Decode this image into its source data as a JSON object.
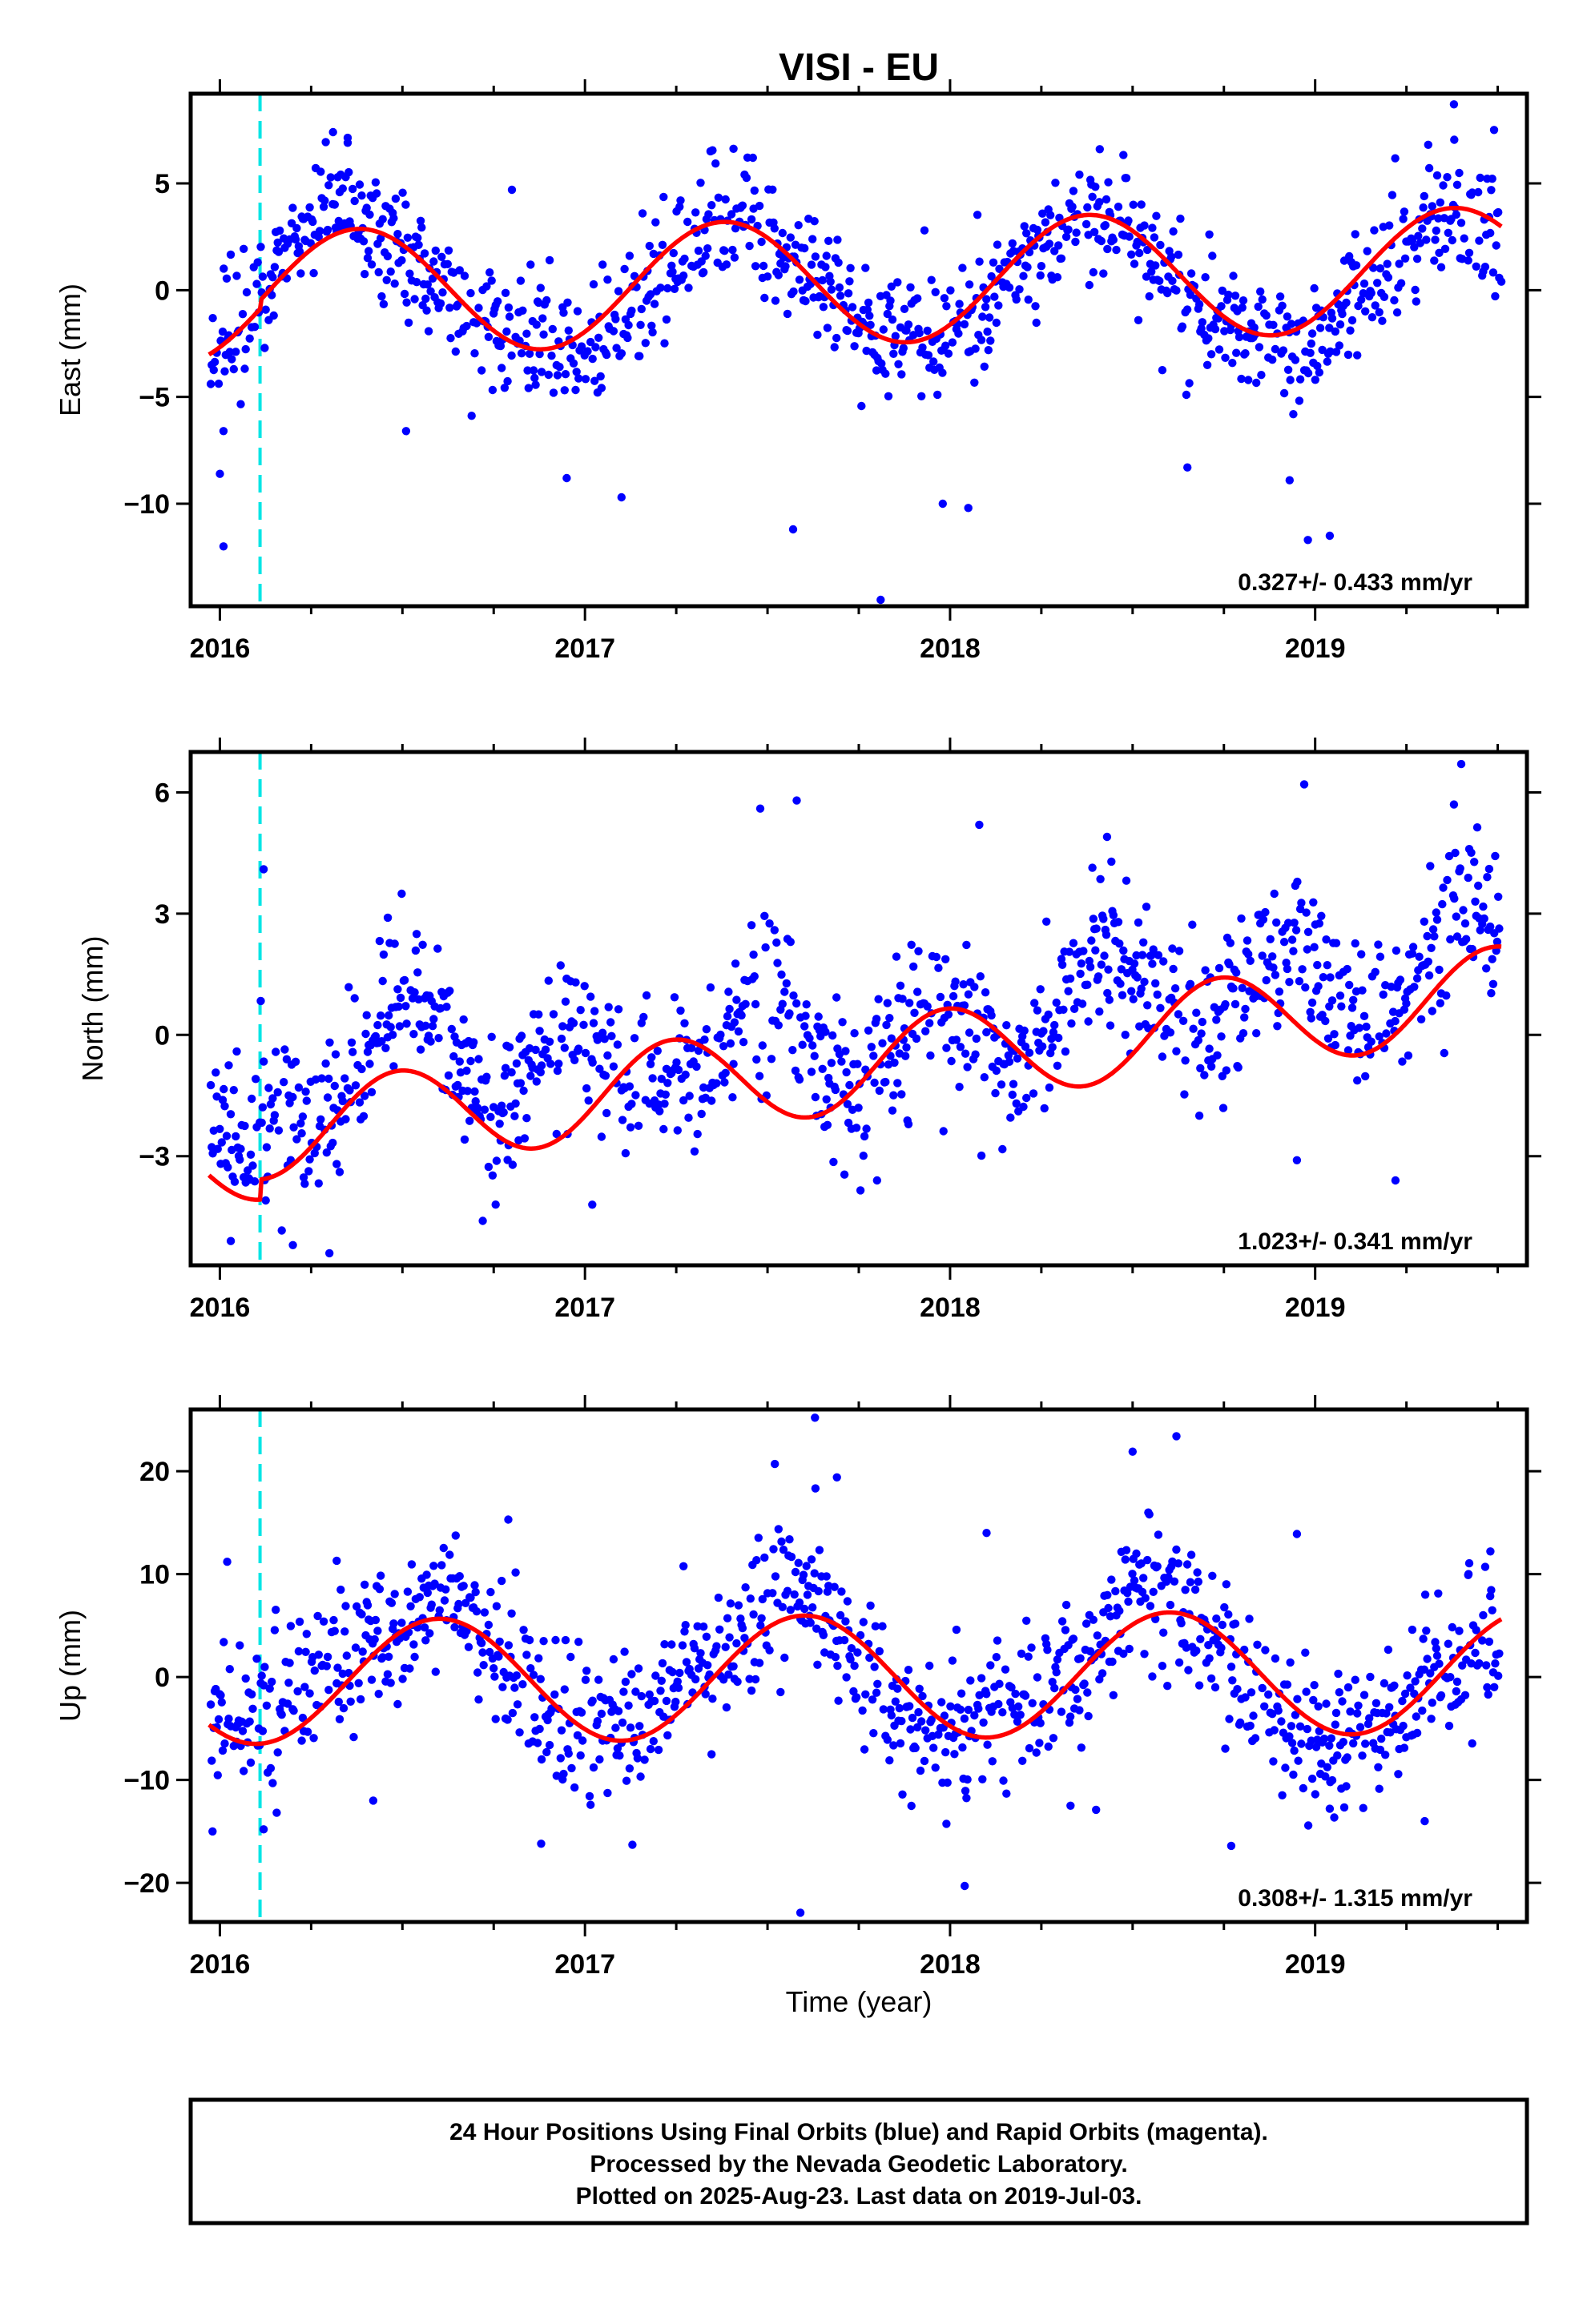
{
  "title": "VISI - EU",
  "xlabel": "Time (year)",
  "footer": {
    "line1": "24 Hour Positions Using Final Orbits (blue) and Rapid Orbits (magenta).",
    "line2": "Processed by the Nevada Geodetic Laboratory.",
    "line3": "Plotted on 2025-Aug-23. Last data on 2019-Jul-03."
  },
  "colors": {
    "points": "#0000ff",
    "fit": "#ff0000",
    "event_line": "#00e5e5",
    "frame": "#000000"
  },
  "chart_data": [
    {
      "type": "scatter",
      "ylabel": "East (mm)",
      "rate_text": "0.327+/- 0.433 mm/yr",
      "xlim": [
        2015.92,
        2019.58
      ],
      "ylim": [
        -14.8,
        9.2
      ],
      "yticks": [
        -10,
        -5,
        0,
        5
      ],
      "xticks": [
        2016,
        2017,
        2018,
        2019
      ],
      "grid": false,
      "event_line_x": 2016.11,
      "fit": {
        "offset": 0.0,
        "rate": 0.327,
        "amplitude": 2.9,
        "period": 1.0,
        "peak": 2016.38,
        "step": [
          2016.11,
          0.4
        ]
      },
      "series": [
        {
          "kind": "daily",
          "samples": [
            {
              "x": 2015.97,
              "y": -3.2
            },
            {
              "x": 2016.05,
              "y": -1.0
            },
            {
              "x": 2016.15,
              "y": 0.5
            },
            {
              "x": 2016.25,
              "y": 2.9
            },
            {
              "x": 2016.35,
              "y": 3.6
            },
            {
              "x": 2016.45,
              "y": 2.5
            },
            {
              "x": 2016.55,
              "y": 1.2
            },
            {
              "x": 2016.65,
              "y": -0.5
            },
            {
              "x": 2016.75,
              "y": -1.8
            },
            {
              "x": 2016.85,
              "y": -2.4
            },
            {
              "x": 2016.95,
              "y": -3.3
            },
            {
              "x": 2017.05,
              "y": -2.5
            },
            {
              "x": 2017.15,
              "y": -0.7
            },
            {
              "x": 2017.35,
              "y": 3.2
            },
            {
              "x": 2017.45,
              "y": 3.9
            },
            {
              "x": 2017.55,
              "y": 1.8
            },
            {
              "x": 2017.65,
              "y": 0.2
            },
            {
              "x": 2017.75,
              "y": -1.5
            },
            {
              "x": 2017.85,
              "y": -2.4
            },
            {
              "x": 2017.95,
              "y": -2.9
            },
            {
              "x": 2018.05,
              "y": -1.5
            },
            {
              "x": 2018.15,
              "y": 0.3
            },
            {
              "x": 2018.25,
              "y": 2.2
            },
            {
              "x": 2018.35,
              "y": 3.4
            },
            {
              "x": 2018.45,
              "y": 3.2
            },
            {
              "x": 2018.55,
              "y": 1.6
            },
            {
              "x": 2018.65,
              "y": -0.4
            },
            {
              "x": 2018.75,
              "y": -1.4
            },
            {
              "x": 2018.85,
              "y": -2.2
            },
            {
              "x": 2018.95,
              "y": -2.6
            },
            {
              "x": 2019.05,
              "y": -1.4
            },
            {
              "x": 2019.15,
              "y": 0.4
            },
            {
              "x": 2019.25,
              "y": 2.3
            },
            {
              "x": 2019.35,
              "y": 3.4
            },
            {
              "x": 2019.45,
              "y": 3.1
            },
            {
              "x": 2019.5,
              "y": 2.0
            }
          ],
          "outliers": [
            {
              "x": 2016.01,
              "y": -12.0
            },
            {
              "x": 2016.0,
              "y": -8.6
            },
            {
              "x": 2016.01,
              "y": -6.6
            },
            {
              "x": 2016.31,
              "y": 7.4
            },
            {
              "x": 2016.35,
              "y": 6.9
            },
            {
              "x": 2016.51,
              "y": -6.6
            },
            {
              "x": 2016.8,
              "y": 4.7
            },
            {
              "x": 2016.95,
              "y": -8.8
            },
            {
              "x": 2017.1,
              "y": -9.7
            },
            {
              "x": 2017.46,
              "y": 6.2
            },
            {
              "x": 2017.57,
              "y": -11.2
            },
            {
              "x": 2017.81,
              "y": -14.5
            },
            {
              "x": 2017.93,
              "y": 2.8
            },
            {
              "x": 2017.98,
              "y": -10.0
            },
            {
              "x": 2018.05,
              "y": -10.2
            },
            {
              "x": 2018.41,
              "y": 6.6
            },
            {
              "x": 2018.65,
              "y": -8.3
            },
            {
              "x": 2018.93,
              "y": -8.9
            },
            {
              "x": 2018.98,
              "y": -11.7
            },
            {
              "x": 2019.04,
              "y": -11.5
            },
            {
              "x": 2019.38,
              "y": 8.7
            },
            {
              "x": 2019.49,
              "y": 7.5
            },
            {
              "x": 2019.51,
              "y": 0.4
            }
          ]
        }
      ]
    },
    {
      "type": "scatter",
      "ylabel": "North (mm)",
      "rate_text": "1.023+/- 0.341 mm/yr",
      "xlim": [
        2015.92,
        2019.58
      ],
      "ylim": [
        -5.7,
        7.0
      ],
      "yticks": [
        -3,
        0,
        3,
        6
      ],
      "xticks": [
        2016,
        2017,
        2018,
        2019
      ],
      "grid": false,
      "event_line_x": 2016.11,
      "fit": {
        "offset": -1.3,
        "rate": 1.023,
        "amplitude": 1.15,
        "period": 0.75,
        "peak": 2016.49,
        "step": [
          2016.11,
          0.5
        ]
      },
      "series": [
        {
          "kind": "daily",
          "samples": [
            {
              "x": 2015.97,
              "y": -1.8
            },
            {
              "x": 2016.05,
              "y": -2.4
            },
            {
              "x": 2016.15,
              "y": -2.3
            },
            {
              "x": 2016.25,
              "y": -2.7
            },
            {
              "x": 2016.35,
              "y": -1.2
            },
            {
              "x": 2016.45,
              "y": 0.4
            },
            {
              "x": 2016.55,
              "y": 0.7
            },
            {
              "x": 2016.65,
              "y": -0.6
            },
            {
              "x": 2016.75,
              "y": -2.2
            },
            {
              "x": 2016.85,
              "y": -1.2
            },
            {
              "x": 2016.95,
              "y": 0.2
            },
            {
              "x": 2017.05,
              "y": -0.6
            },
            {
              "x": 2017.15,
              "y": -1.2
            },
            {
              "x": 2017.35,
              "y": -0.6
            },
            {
              "x": 2017.45,
              "y": 1.3
            },
            {
              "x": 2017.55,
              "y": 0.8
            },
            {
              "x": 2017.65,
              "y": -0.7
            },
            {
              "x": 2017.75,
              "y": -1.5
            },
            {
              "x": 2017.85,
              "y": -0.2
            },
            {
              "x": 2017.95,
              "y": 1.1
            },
            {
              "x": 2018.05,
              "y": 0.6
            },
            {
              "x": 2018.15,
              "y": -0.8
            },
            {
              "x": 2018.25,
              "y": -0.1
            },
            {
              "x": 2018.35,
              "y": 1.5
            },
            {
              "x": 2018.45,
              "y": 2.4
            },
            {
              "x": 2018.55,
              "y": 1.3
            },
            {
              "x": 2018.65,
              "y": -0.1
            },
            {
              "x": 2018.75,
              "y": 0.3
            },
            {
              "x": 2018.85,
              "y": 1.6
            },
            {
              "x": 2018.95,
              "y": 2.5
            },
            {
              "x": 2019.05,
              "y": 1.3
            },
            {
              "x": 2019.15,
              "y": 0.2
            },
            {
              "x": 2019.25,
              "y": 0.9
            },
            {
              "x": 2019.35,
              "y": 2.5
            },
            {
              "x": 2019.45,
              "y": 3.3
            },
            {
              "x": 2019.5,
              "y": 2.8
            }
          ],
          "outliers": [
            {
              "x": 2016.03,
              "y": -5.1
            },
            {
              "x": 2016.12,
              "y": 4.1
            },
            {
              "x": 2016.2,
              "y": -5.2
            },
            {
              "x": 2016.3,
              "y": -5.4
            },
            {
              "x": 2016.46,
              "y": 2.9
            },
            {
              "x": 2016.72,
              "y": -4.6
            },
            {
              "x": 2017.02,
              "y": -4.2
            },
            {
              "x": 2017.48,
              "y": 5.6
            },
            {
              "x": 2017.58,
              "y": 5.8
            },
            {
              "x": 2017.8,
              "y": -3.6
            },
            {
              "x": 2018.08,
              "y": 5.2
            },
            {
              "x": 2018.43,
              "y": 4.9
            },
            {
              "x": 2018.97,
              "y": 6.2
            },
            {
              "x": 2018.95,
              "y": -3.1
            },
            {
              "x": 2019.22,
              "y": -3.6
            },
            {
              "x": 2019.4,
              "y": 6.7
            },
            {
              "x": 2019.38,
              "y": 5.7
            }
          ]
        }
      ]
    },
    {
      "type": "scatter",
      "ylabel": "Up (mm)",
      "rate_text": "0.308+/- 1.315 mm/yr",
      "xlim": [
        2015.92,
        2019.58
      ],
      "ylim": [
        -23.8,
        26.0
      ],
      "yticks": [
        -20,
        -10,
        0,
        10,
        20
      ],
      "xticks": [
        2016,
        2017,
        2018,
        2019
      ],
      "grid": false,
      "event_line_x": 2016.11,
      "fit": {
        "offset": 0.0,
        "rate": 0.308,
        "amplitude": 6.0,
        "period": 1.0,
        "peak": 2016.6,
        "step": null
      },
      "series": [
        {
          "kind": "daily",
          "samples": [
            {
              "x": 2015.97,
              "y": -4.5
            },
            {
              "x": 2016.05,
              "y": -3.5
            },
            {
              "x": 2016.15,
              "y": -4.0
            },
            {
              "x": 2016.25,
              "y": -2.0
            },
            {
              "x": 2016.35,
              "y": 1.5
            },
            {
              "x": 2016.45,
              "y": 4.0
            },
            {
              "x": 2016.55,
              "y": 8.0
            },
            {
              "x": 2016.65,
              "y": 7.0
            },
            {
              "x": 2016.75,
              "y": 3.0
            },
            {
              "x": 2016.85,
              "y": -2.0
            },
            {
              "x": 2016.95,
              "y": -5.5
            },
            {
              "x": 2017.05,
              "y": -5.0
            },
            {
              "x": 2017.15,
              "y": -3.5
            },
            {
              "x": 2017.35,
              "y": 1.5
            },
            {
              "x": 2017.45,
              "y": 5.0
            },
            {
              "x": 2017.55,
              "y": 9.5
            },
            {
              "x": 2017.65,
              "y": 8.0
            },
            {
              "x": 2017.75,
              "y": 2.0
            },
            {
              "x": 2017.85,
              "y": -3.0
            },
            {
              "x": 2017.95,
              "y": -5.5
            },
            {
              "x": 2018.05,
              "y": -5.0
            },
            {
              "x": 2018.15,
              "y": -4.0
            },
            {
              "x": 2018.25,
              "y": -2.0
            },
            {
              "x": 2018.35,
              "y": 1.0
            },
            {
              "x": 2018.45,
              "y": 5.0
            },
            {
              "x": 2018.55,
              "y": 9.5
            },
            {
              "x": 2018.65,
              "y": 7.0
            },
            {
              "x": 2018.75,
              "y": 2.0
            },
            {
              "x": 2018.85,
              "y": -3.0
            },
            {
              "x": 2018.95,
              "y": -5.0
            },
            {
              "x": 2019.05,
              "y": -6.5
            },
            {
              "x": 2019.15,
              "y": -6.0
            },
            {
              "x": 2019.25,
              "y": -3.0
            },
            {
              "x": 2019.35,
              "y": 0.5
            },
            {
              "x": 2019.45,
              "y": 4.5
            },
            {
              "x": 2019.5,
              "y": 5.5
            }
          ],
          "outliers": [
            {
              "x": 2015.98,
              "y": -15.0
            },
            {
              "x": 2016.02,
              "y": 11.2
            },
            {
              "x": 2016.12,
              "y": -14.8
            },
            {
              "x": 2016.32,
              "y": 11.3
            },
            {
              "x": 2016.42,
              "y": -12.0
            },
            {
              "x": 2016.79,
              "y": 15.3
            },
            {
              "x": 2016.88,
              "y": -16.2
            },
            {
              "x": 2017.13,
              "y": -16.3
            },
            {
              "x": 2017.52,
              "y": 20.7
            },
            {
              "x": 2017.59,
              "y": -22.9
            },
            {
              "x": 2017.63,
              "y": 25.2
            },
            {
              "x": 2017.69,
              "y": 19.4
            },
            {
              "x": 2018.04,
              "y": -20.3
            },
            {
              "x": 2018.1,
              "y": 14.0
            },
            {
              "x": 2018.33,
              "y": -12.5
            },
            {
              "x": 2018.4,
              "y": -12.9
            },
            {
              "x": 2018.5,
              "y": 21.9
            },
            {
              "x": 2018.62,
              "y": 23.4
            },
            {
              "x": 2018.77,
              "y": -16.4
            },
            {
              "x": 2018.95,
              "y": 13.9
            },
            {
              "x": 2019.04,
              "y": -12.8
            },
            {
              "x": 2019.3,
              "y": -14.0
            },
            {
              "x": 2019.42,
              "y": 10.0
            },
            {
              "x": 2019.48,
              "y": 12.2
            }
          ]
        }
      ]
    }
  ]
}
